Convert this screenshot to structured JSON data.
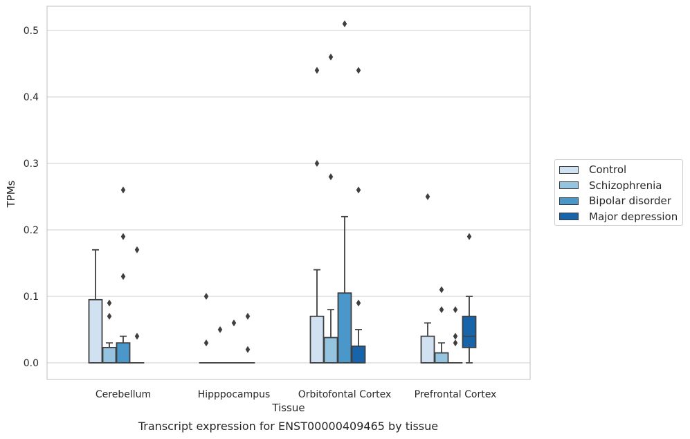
{
  "chart_data": {
    "type": "box",
    "title": "Transcript expression for ENST00000409465 by tissue",
    "xlabel": "Tissue",
    "ylabel": "TPMs",
    "ylim": [
      -0.025,
      0.54
    ],
    "yticks": [
      0.0,
      0.1,
      0.2,
      0.3,
      0.4,
      0.5
    ],
    "ytick_labels": [
      "0.0",
      "0.1",
      "0.2",
      "0.3",
      "0.4",
      "0.5"
    ],
    "grid": true,
    "legend_position": "right",
    "categories": [
      "Cerebellum",
      "Hipppocampus",
      "Orbitofontal Cortex",
      "Prefrontal Cortex"
    ],
    "series": [
      {
        "name": "Control",
        "color": "#d0e1f2",
        "boxes": [
          {
            "q1": 0.0,
            "median": 0.0,
            "q3": 0.095,
            "whislo": 0.0,
            "whishi": 0.17,
            "fliers": []
          },
          {
            "q1": 0.0,
            "median": 0.0,
            "q3": 0.0,
            "whislo": 0.0,
            "whishi": 0.0,
            "fliers": [
              0.03,
              0.1
            ]
          },
          {
            "q1": 0.0,
            "median": 0.0,
            "q3": 0.07,
            "whislo": 0.0,
            "whishi": 0.14,
            "fliers": [
              0.3,
              0.44
            ]
          },
          {
            "q1": 0.0,
            "median": 0.0,
            "q3": 0.04,
            "whislo": 0.0,
            "whishi": 0.06,
            "fliers": [
              0.25
            ]
          }
        ]
      },
      {
        "name": "Schizophrenia",
        "color": "#94c4df",
        "boxes": [
          {
            "q1": 0.0,
            "median": 0.0,
            "q3": 0.023,
            "whislo": 0.0,
            "whishi": 0.03,
            "fliers": [
              0.07,
              0.09
            ]
          },
          {
            "q1": 0.0,
            "median": 0.0,
            "q3": 0.0,
            "whislo": 0.0,
            "whishi": 0.0,
            "fliers": [
              0.05
            ]
          },
          {
            "q1": 0.0,
            "median": 0.0,
            "q3": 0.038,
            "whislo": 0.0,
            "whishi": 0.08,
            "fliers": [
              0.28,
              0.46
            ]
          },
          {
            "q1": 0.0,
            "median": 0.0,
            "q3": 0.015,
            "whislo": 0.0,
            "whishi": 0.03,
            "fliers": [
              0.08,
              0.11
            ]
          }
        ]
      },
      {
        "name": "Bipolar disorder",
        "color": "#4a98c9",
        "boxes": [
          {
            "q1": 0.0,
            "median": 0.0,
            "q3": 0.03,
            "whislo": 0.0,
            "whishi": 0.04,
            "fliers": [
              0.13,
              0.19,
              0.26
            ]
          },
          {
            "q1": 0.0,
            "median": 0.0,
            "q3": 0.0,
            "whislo": 0.0,
            "whishi": 0.0,
            "fliers": [
              0.06
            ]
          },
          {
            "q1": 0.0,
            "median": 0.0,
            "q3": 0.105,
            "whislo": 0.0,
            "whishi": 0.22,
            "fliers": [
              0.51
            ]
          },
          {
            "q1": 0.0,
            "median": 0.0,
            "q3": 0.0,
            "whislo": 0.0,
            "whishi": 0.0,
            "fliers": [
              0.03,
              0.04,
              0.08
            ]
          }
        ]
      },
      {
        "name": "Major depression",
        "color": "#1764ab",
        "boxes": [
          {
            "q1": 0.0,
            "median": 0.0,
            "q3": 0.0,
            "whislo": 0.0,
            "whishi": 0.0,
            "fliers": [
              0.04,
              0.17
            ]
          },
          {
            "q1": 0.0,
            "median": 0.0,
            "q3": 0.0,
            "whislo": 0.0,
            "whishi": 0.0,
            "fliers": [
              0.02,
              0.07
            ]
          },
          {
            "q1": 0.0,
            "median": 0.0,
            "q3": 0.025,
            "whislo": 0.0,
            "whishi": 0.05,
            "fliers": [
              0.09,
              0.26,
              0.44
            ]
          },
          {
            "q1": 0.023,
            "median": 0.04,
            "q3": 0.07,
            "whislo": 0.0,
            "whishi": 0.1,
            "fliers": [
              0.19
            ]
          }
        ]
      }
    ]
  }
}
